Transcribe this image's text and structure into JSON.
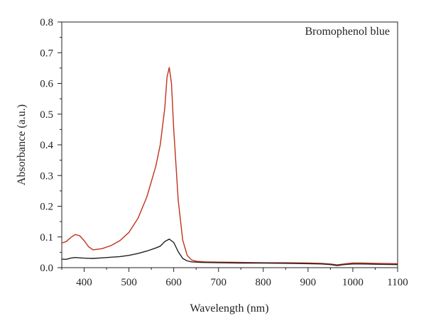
{
  "chart_data": {
    "type": "line",
    "title": "",
    "annotation": "Bromophenol blue",
    "xlabel": "Wavelength (nm)",
    "ylabel": "Absorbance (a.u.)",
    "xlim": [
      350,
      1100
    ],
    "ylim": [
      0.0,
      0.8
    ],
    "x_ticks": [
      400,
      500,
      600,
      700,
      800,
      900,
      1000,
      1100
    ],
    "y_ticks": [
      "0.0",
      "0.1",
      "0.2",
      "0.3",
      "0.4",
      "0.5",
      "0.6",
      "0.7",
      "0.8"
    ],
    "grid": false,
    "legend": "none",
    "series": [
      {
        "color": "#c0311d",
        "x": [
          350,
          360,
          370,
          380,
          390,
          400,
          410,
          420,
          440,
          460,
          480,
          500,
          520,
          540,
          560,
          570,
          580,
          585,
          590,
          595,
          600,
          610,
          620,
          630,
          640,
          650,
          660,
          670,
          700,
          750,
          800,
          850,
          900,
          930,
          950,
          965,
          980,
          1000,
          1020,
          1050,
          1100
        ],
        "y": [
          0.08,
          0.085,
          0.098,
          0.108,
          0.104,
          0.088,
          0.068,
          0.058,
          0.062,
          0.072,
          0.088,
          0.115,
          0.16,
          0.23,
          0.33,
          0.4,
          0.52,
          0.62,
          0.652,
          0.6,
          0.45,
          0.22,
          0.09,
          0.04,
          0.025,
          0.021,
          0.02,
          0.019,
          0.018,
          0.017,
          0.016,
          0.016,
          0.015,
          0.014,
          0.012,
          0.009,
          0.012,
          0.015,
          0.015,
          0.014,
          0.013
        ]
      },
      {
        "color": "#231f20",
        "x": [
          350,
          360,
          370,
          380,
          390,
          400,
          420,
          440,
          460,
          480,
          500,
          520,
          540,
          560,
          570,
          580,
          590,
          600,
          610,
          620,
          630,
          640,
          660,
          700,
          750,
          800,
          850,
          900,
          930,
          950,
          965,
          980,
          1000,
          1020,
          1050,
          1100
        ],
        "y": [
          0.028,
          0.027,
          0.031,
          0.033,
          0.032,
          0.031,
          0.03,
          0.032,
          0.034,
          0.036,
          0.04,
          0.046,
          0.054,
          0.064,
          0.07,
          0.085,
          0.093,
          0.082,
          0.052,
          0.03,
          0.022,
          0.019,
          0.017,
          0.016,
          0.015,
          0.015,
          0.014,
          0.013,
          0.012,
          0.01,
          0.007,
          0.01,
          0.012,
          0.012,
          0.011,
          0.01
        ]
      }
    ]
  }
}
